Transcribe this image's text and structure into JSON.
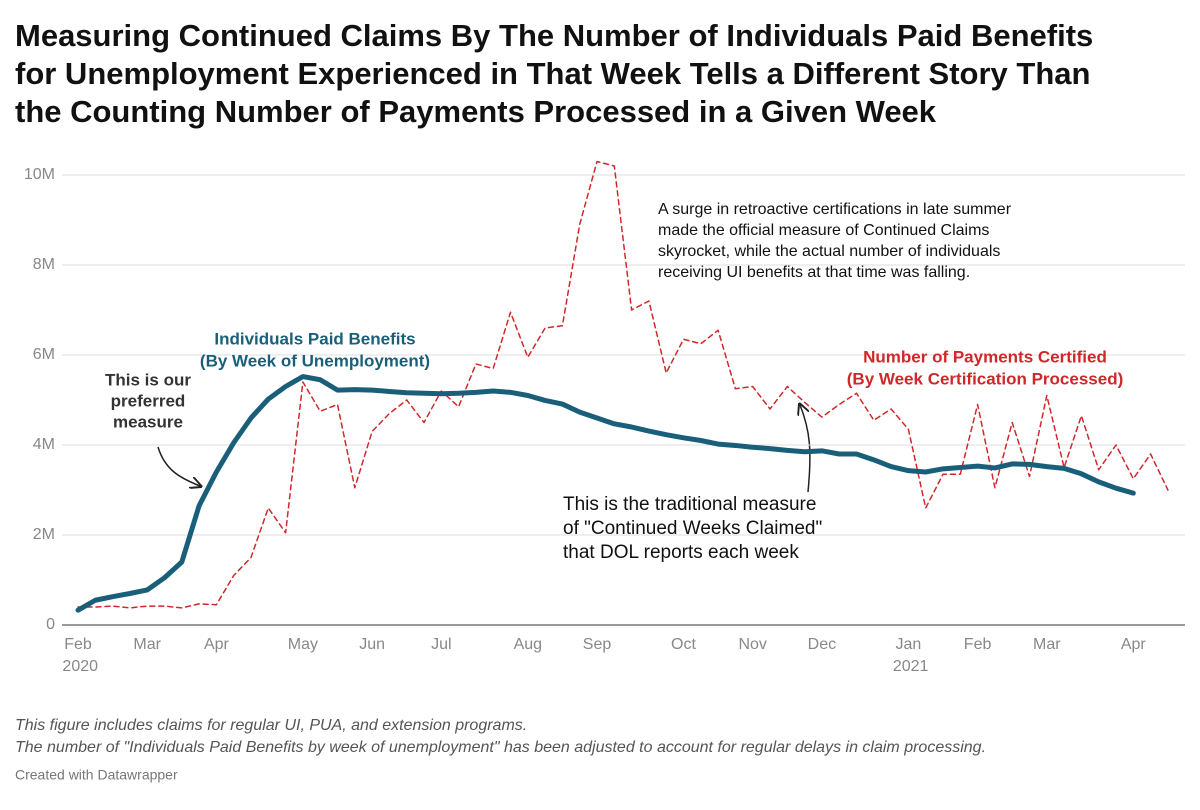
{
  "chart_data": {
    "type": "line",
    "title": [
      "Measuring Continued Claims By The Number of Individuals Paid Benefits",
      "for Unemployment Experienced in That Week Tells a Different Story Than",
      "the Counting Number of Payments Processed in a Given Week"
    ],
    "categories": [
      "Feb 2020",
      null,
      null,
      null,
      "Mar",
      null,
      null,
      null,
      "Apr",
      null,
      null,
      null,
      null,
      "May",
      null,
      null,
      null,
      "Jun",
      null,
      null,
      null,
      "Jul",
      null,
      null,
      null,
      null,
      "Aug",
      null,
      null,
      null,
      "Sep",
      null,
      null,
      null,
      null,
      "Oct",
      null,
      null,
      null,
      "Nov",
      null,
      null,
      null,
      "Dec",
      null,
      null,
      null,
      null,
      "Jan 2021",
      null,
      null,
      null,
      "Feb",
      null,
      null,
      null,
      "Mar",
      null,
      null,
      null,
      null,
      "Apr",
      null,
      null
    ],
    "series": [
      {
        "name": [
          "Individuals Paid Benefits",
          "(By Week of Unemployment)"
        ],
        "color": "#1a5f7a",
        "dashed": false,
        "values": [
          0.33,
          0.55,
          0.63,
          0.7,
          0.78,
          1.05,
          1.4,
          2.65,
          3.4,
          4.05,
          4.6,
          5.02,
          5.3,
          5.52,
          5.45,
          5.22,
          5.23,
          5.22,
          5.19,
          5.16,
          5.15,
          5.14,
          5.15,
          5.17,
          5.2,
          5.17,
          5.1,
          4.99,
          4.91,
          4.73,
          4.6,
          4.47,
          4.4,
          4.31,
          4.23,
          4.16,
          4.1,
          4.02,
          3.99,
          3.95,
          3.92,
          3.88,
          3.85,
          3.87,
          3.8,
          3.8,
          3.67,
          3.52,
          3.43,
          3.4,
          3.47,
          3.5,
          3.53,
          3.49,
          3.58,
          3.57,
          3.52,
          3.48,
          3.36,
          3.18,
          3.04,
          2.93,
          null,
          null
        ]
      },
      {
        "name": [
          "Number of Payments Certified",
          "(By Week Certification Processed)"
        ],
        "color": "#d0282a",
        "dashed": true,
        "values": [
          0.4,
          0.4,
          0.42,
          0.38,
          0.42,
          0.42,
          0.38,
          0.47,
          0.45,
          1.1,
          1.5,
          2.6,
          2.05,
          5.4,
          4.75,
          4.9,
          3.05,
          4.3,
          4.7,
          5.0,
          4.5,
          5.2,
          4.85,
          5.8,
          5.7,
          6.95,
          5.95,
          6.6,
          6.65,
          8.9,
          10.3,
          10.2,
          7.0,
          7.2,
          5.6,
          6.35,
          6.25,
          6.55,
          5.25,
          5.3,
          4.8,
          5.3,
          4.95,
          4.62,
          4.9,
          5.15,
          4.55,
          4.8,
          4.35,
          2.6,
          3.35,
          3.35,
          4.9,
          3.05,
          4.5,
          3.3,
          5.1,
          3.5,
          4.65,
          3.45,
          4.0,
          3.25,
          3.8,
          3.0
        ]
      }
    ],
    "ylim": [
      0,
      10.5
    ],
    "yticks": [
      0,
      {
        "value": 2,
        "label": "2M"
      },
      {
        "value": 4,
        "label": "4M"
      },
      {
        "value": 6,
        "label": "6M"
      },
      {
        "value": 8,
        "label": "8M"
      },
      {
        "value": 10,
        "label": "10M"
      }
    ],
    "grid": true,
    "annotations": {
      "preferred": [
        "This is our",
        "preferred",
        "measure"
      ],
      "traditional": [
        "This is the traditional measure",
        "of \"Continued Weeks Claimed\"",
        "that DOL reports each week"
      ],
      "surge": [
        "A surge in retroactive certifications in late summer",
        "made the official measure of Continued Claims",
        "skyrocket, while the actual number of individuals",
        "receiving UI benefits at that time was falling."
      ]
    },
    "notes": [
      "This figure includes claims for regular UI, PUA, and extension programs.",
      "The number of \"Individuals Paid Benefits by week of unemployment\" has been adjusted to account for regular delays in claim processing."
    ],
    "credit": "Created with Datawrapper"
  }
}
